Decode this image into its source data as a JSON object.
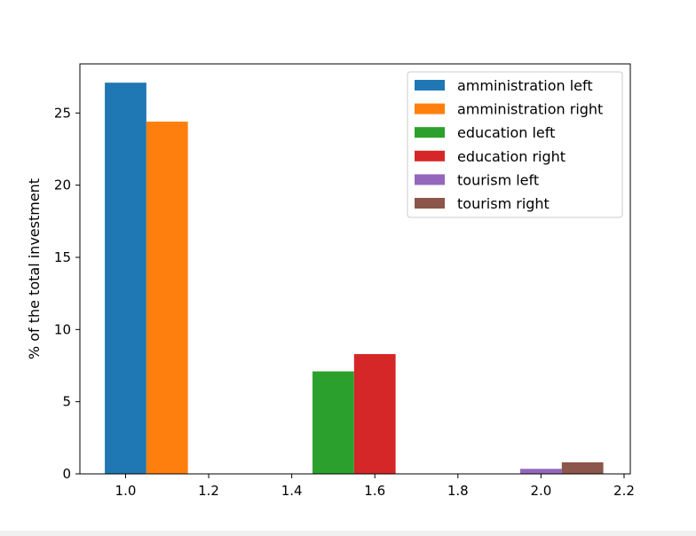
{
  "chart_data": {
    "type": "bar",
    "title": "",
    "xlabel": "",
    "ylabel": "% of the total investment",
    "xlim": [
      0.89,
      2.215
    ],
    "ylim": [
      0,
      28.4
    ],
    "x_ticks": [
      "1.0",
      "1.2",
      "1.4",
      "1.6",
      "1.8",
      "2.0",
      "2.2"
    ],
    "y_ticks": [
      "0",
      "5",
      "10",
      "15",
      "20",
      "25"
    ],
    "bar_width": 0.1,
    "grid": false,
    "legend_position": "top-right",
    "series": [
      {
        "name": "amministration left",
        "x": 1.0,
        "value": 27.1,
        "color": "#1f77b4"
      },
      {
        "name": "amministration right",
        "x": 1.1,
        "value": 24.4,
        "color": "#ff7f0e"
      },
      {
        "name": "education left",
        "x": 1.5,
        "value": 7.1,
        "color": "#2ca02c"
      },
      {
        "name": "education right",
        "x": 1.6,
        "value": 8.3,
        "color": "#d62728"
      },
      {
        "name": "tourism left",
        "x": 2.0,
        "value": 0.35,
        "color": "#9467bd"
      },
      {
        "name": "tourism right",
        "x": 2.1,
        "value": 0.8,
        "color": "#8c564b"
      }
    ]
  }
}
